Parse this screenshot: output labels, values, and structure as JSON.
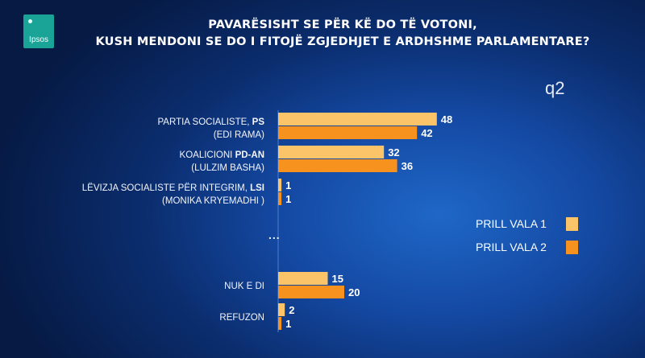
{
  "header": {
    "logo_text": "Ipsos",
    "title_line1": "PAVARËSISHT SE PËR KË DO TË VOTONI,",
    "title_line2": "KUSH MENDONI SE DO I FITOJË ZGJEDHJET E ARDHSHME PARLAMENTARE?",
    "question_code": "q2"
  },
  "separator": "...",
  "chart_data": {
    "type": "bar",
    "orientation": "horizontal",
    "categories": [
      {
        "line1": "PARTIA SOCIALISTE, ",
        "line1_bold": "PS",
        "line2": "(EDI RAMA)"
      },
      {
        "line1": "KOALICIONI ",
        "line1_bold": "PD-AN",
        "line2": "(LULZIM BASHA)"
      },
      {
        "line1": "LËVIZJA SOCIALISTE PËR INTEGRIM, ",
        "line1_bold": "LSI",
        "line2": "(MONIKA KRYEMADHI )"
      },
      {
        "line1": "NUK E DI",
        "line1_bold": "",
        "line2": ""
      },
      {
        "line1": "REFUZON",
        "line1_bold": "",
        "line2": ""
      }
    ],
    "series": [
      {
        "name": "PRILL VALA 1",
        "color": "#fcc468",
        "values": [
          48,
          32,
          1,
          15,
          2
        ]
      },
      {
        "name": "PRILL VALA 2",
        "color": "#f7921f",
        "values": [
          42,
          36,
          1,
          20,
          1
        ]
      }
    ],
    "axis_start": 0,
    "grid": false,
    "legend_position": "right"
  }
}
